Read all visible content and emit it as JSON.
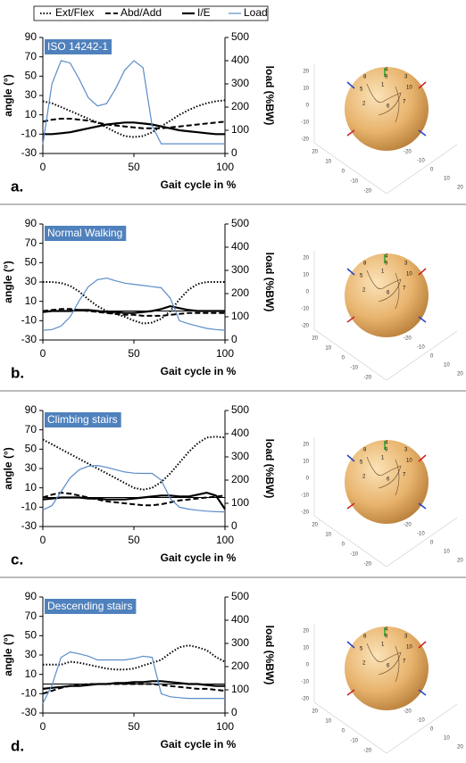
{
  "chart_data": [
    {
      "type": "line",
      "title": "ISO 14242-1",
      "panel_label": "a.",
      "xlabel": "Gait cycle in %",
      "ylabel": "angle (°)",
      "y2label": "load (%BW)",
      "xlim": [
        0,
        100
      ],
      "xticks": [
        0,
        50,
        100
      ],
      "ylim": [
        -30,
        90
      ],
      "yticks": [
        -30,
        -10,
        10,
        30,
        50,
        70,
        90
      ],
      "y2lim": [
        0,
        500
      ],
      "y2ticks": [
        0,
        100,
        200,
        300,
        400,
        500
      ],
      "zero_line": false,
      "x": [
        0,
        5,
        10,
        15,
        20,
        25,
        30,
        35,
        40,
        45,
        50,
        55,
        60,
        65,
        70,
        75,
        80,
        85,
        90,
        95,
        100
      ],
      "series": [
        {
          "name": "Ext/Flex",
          "color": "#000000",
          "style": "dotted",
          "values": [
            24,
            22,
            18,
            14,
            10,
            6,
            2,
            -3,
            -8,
            -12,
            -13,
            -12,
            -8,
            -2,
            4,
            10,
            15,
            19,
            22,
            24,
            25
          ]
        },
        {
          "name": "Abd/Add",
          "color": "#000000",
          "style": "dashed",
          "values": [
            3,
            5,
            6,
            6,
            5,
            4,
            2,
            0,
            -1,
            -2,
            -3,
            -4,
            -4,
            -4,
            -3,
            -2,
            -1,
            0,
            1,
            2,
            3
          ]
        },
        {
          "name": "I/E",
          "color": "#000000",
          "style": "solid",
          "values": [
            -10,
            -10,
            -9,
            -8,
            -6,
            -4,
            -2,
            0,
            1,
            2,
            2,
            1,
            0,
            -2,
            -4,
            -6,
            -7,
            -8,
            -9,
            -10,
            -10
          ]
        },
        {
          "name": "Load",
          "color": "#5b8cc8",
          "style": "thin",
          "axis": "y2",
          "values": [
            40,
            300,
            400,
            390,
            320,
            240,
            205,
            215,
            280,
            360,
            400,
            370,
            120,
            42,
            42,
            42,
            42,
            42,
            42,
            42,
            42
          ]
        }
      ]
    },
    {
      "type": "line",
      "title": "Normal Walking",
      "panel_label": "b.",
      "xlabel": "Gait cycle in %",
      "ylabel": "angle (°)",
      "y2label": "load (%BW)",
      "xlim": [
        0,
        100
      ],
      "xticks": [
        0,
        50,
        100
      ],
      "ylim": [
        -30,
        90
      ],
      "yticks": [
        -30,
        -10,
        10,
        30,
        50,
        70,
        90
      ],
      "y2lim": [
        0,
        500
      ],
      "y2ticks": [
        0,
        100,
        200,
        300,
        400,
        500
      ],
      "zero_line": true,
      "x": [
        0,
        5,
        10,
        15,
        20,
        25,
        30,
        35,
        40,
        45,
        50,
        55,
        60,
        65,
        70,
        75,
        80,
        85,
        90,
        95,
        100
      ],
      "series": [
        {
          "name": "Ext/Flex",
          "color": "#000000",
          "style": "dotted",
          "values": [
            30,
            30,
            29,
            26,
            20,
            12,
            5,
            0,
            -3,
            -6,
            -10,
            -13,
            -12,
            -8,
            0,
            12,
            22,
            28,
            30,
            30,
            30
          ]
        },
        {
          "name": "Abd/Add",
          "color": "#000000",
          "style": "dashed",
          "values": [
            0,
            1,
            2,
            2,
            1,
            0,
            -1,
            -2,
            -3,
            -4,
            -4,
            -5,
            -5,
            -5,
            -4,
            -3,
            -2,
            -2,
            -2,
            -2,
            -2
          ]
        },
        {
          "name": "I/E",
          "color": "#000000",
          "style": "solid",
          "values": [
            -1,
            0,
            0,
            0,
            1,
            1,
            0,
            -1,
            -1,
            -2,
            -2,
            -1,
            0,
            2,
            5,
            3,
            1,
            0,
            0,
            0,
            0
          ]
        },
        {
          "name": "Load",
          "color": "#5b8cc8",
          "style": "thin",
          "axis": "y2",
          "values": [
            42,
            45,
            60,
            100,
            170,
            230,
            260,
            267,
            255,
            245,
            240,
            235,
            230,
            225,
            180,
            83,
            70,
            60,
            50,
            45,
            42
          ]
        }
      ]
    },
    {
      "type": "line",
      "title": "Climbing stairs",
      "panel_label": "c.",
      "xlabel": "Gait cycle in %",
      "ylabel": "angle (°)",
      "y2label": "load (%BW)",
      "xlim": [
        0,
        100
      ],
      "xticks": [
        0,
        50,
        100
      ],
      "ylim": [
        -30,
        90
      ],
      "yticks": [
        -30,
        -10,
        10,
        30,
        50,
        70,
        90
      ],
      "y2lim": [
        0,
        500
      ],
      "y2ticks": [
        0,
        100,
        200,
        300,
        400,
        500
      ],
      "zero_line": true,
      "x": [
        0,
        5,
        10,
        15,
        20,
        25,
        30,
        35,
        40,
        45,
        50,
        55,
        60,
        65,
        70,
        75,
        80,
        85,
        90,
        95,
        100
      ],
      "series": [
        {
          "name": "Ext/Flex",
          "color": "#000000",
          "style": "dotted",
          "values": [
            60,
            55,
            50,
            45,
            40,
            35,
            30,
            25,
            20,
            15,
            10,
            8,
            10,
            16,
            25,
            36,
            47,
            56,
            62,
            63,
            62
          ]
        },
        {
          "name": "Abd/Add",
          "color": "#000000",
          "style": "dashed",
          "values": [
            0,
            3,
            5,
            4,
            2,
            0,
            -2,
            -4,
            -5,
            -6,
            -7,
            -8,
            -8,
            -7,
            -5,
            -3,
            -2,
            -1,
            0,
            1,
            2
          ]
        },
        {
          "name": "I/E",
          "color": "#000000",
          "style": "solid",
          "values": [
            -2,
            -1,
            0,
            0,
            0,
            -1,
            -1,
            -2,
            -2,
            -2,
            -1,
            0,
            1,
            2,
            2,
            1,
            1,
            3,
            5,
            2,
            -12
          ]
        },
        {
          "name": "Load",
          "color": "#5b8cc8",
          "style": "thin",
          "axis": "y2",
          "values": [
            71,
            90,
            150,
            210,
            245,
            260,
            263,
            255,
            245,
            235,
            230,
            229,
            229,
            200,
            120,
            83,
            75,
            70,
            66,
            64,
            63
          ]
        }
      ]
    },
    {
      "type": "line",
      "title": "Descending stairs",
      "panel_label": "d.",
      "xlabel": "Gait cycle in %",
      "ylabel": "angle (°)",
      "y2label": "load (%BW)",
      "xlim": [
        0,
        100
      ],
      "xticks": [
        0,
        50,
        100
      ],
      "ylim": [
        -30,
        90
      ],
      "yticks": [
        -30,
        -10,
        10,
        30,
        50,
        70,
        90
      ],
      "y2lim": [
        0,
        500
      ],
      "y2ticks": [
        0,
        100,
        200,
        300,
        400,
        500
      ],
      "zero_line": true,
      "x": [
        0,
        5,
        10,
        15,
        20,
        25,
        30,
        35,
        40,
        45,
        50,
        55,
        60,
        65,
        70,
        75,
        80,
        85,
        90,
        95,
        100
      ],
      "series": [
        {
          "name": "Ext/Flex",
          "color": "#000000",
          "style": "dotted",
          "values": [
            20,
            20,
            20,
            23,
            22,
            20,
            18,
            16,
            15,
            15,
            16,
            19,
            22,
            25,
            32,
            38,
            40,
            38,
            35,
            28,
            23
          ]
        },
        {
          "name": "Abd/Add",
          "color": "#000000",
          "style": "dashed",
          "values": [
            -10,
            -7,
            -4,
            -2,
            -1,
            0,
            0,
            0,
            0,
            0,
            0,
            0,
            0,
            -1,
            -2,
            -3,
            -4,
            -5,
            -5,
            -6,
            -7
          ]
        },
        {
          "name": "I/E",
          "color": "#000000",
          "style": "solid",
          "values": [
            -5,
            -4,
            -3,
            -2,
            -2,
            -1,
            0,
            0,
            1,
            1,
            2,
            2,
            3,
            3,
            2,
            1,
            0,
            0,
            -1,
            -2,
            -2
          ]
        },
        {
          "name": "Load",
          "color": "#5b8cc8",
          "style": "thin",
          "axis": "y2",
          "values": [
            42,
            120,
            240,
            263,
            255,
            245,
            229,
            229,
            229,
            229,
            235,
            245,
            240,
            83,
            70,
            66,
            63,
            63,
            63,
            63,
            63
          ]
        }
      ]
    }
  ],
  "sphere": {
    "axis_ticks": [
      20,
      10,
      0,
      -10,
      -20
    ],
    "point_labels": [
      "1",
      "2",
      "3",
      "4",
      "5",
      "6",
      "7",
      "8",
      "9",
      "10"
    ]
  }
}
